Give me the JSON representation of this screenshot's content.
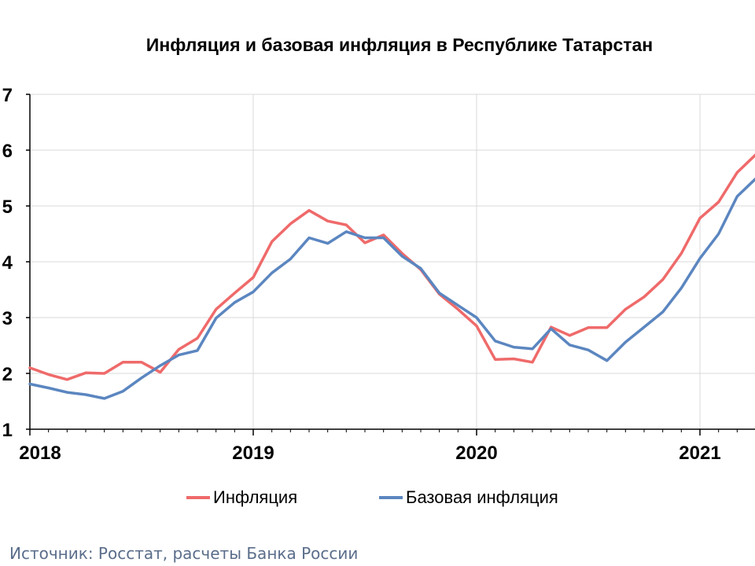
{
  "chart_data": {
    "type": "line",
    "title": "Инфляция и базовая инфляция в Республике Татарстан",
    "ylim": [
      1,
      7
    ],
    "yticks": [
      "1",
      "2",
      "3",
      "4",
      "5",
      "6",
      "7"
    ],
    "xticks": [
      "2018",
      "2019",
      "2020",
      "2021"
    ],
    "grid": "horizontal and vertical",
    "legend_position": "bottom",
    "series": [
      {
        "name": "Инфляция",
        "color": "#ef6a6a",
        "values": [
          2.1,
          1.98,
          1.89,
          2.01,
          2.0,
          2.2,
          2.2,
          2.02,
          2.43,
          2.63,
          3.15,
          3.44,
          3.72,
          4.36,
          4.68,
          4.92,
          4.73,
          4.66,
          4.34,
          4.48,
          4.15,
          3.86,
          3.42,
          3.15,
          2.85,
          2.25,
          2.26,
          2.2,
          2.83,
          2.68,
          2.82,
          2.82,
          3.15,
          3.37,
          3.68,
          4.15,
          4.78,
          5.07,
          5.6,
          5.92
        ]
      },
      {
        "name": "Базовая инфляция",
        "color": "#5b86c0",
        "values": [
          1.81,
          1.74,
          1.66,
          1.62,
          1.55,
          1.68,
          1.92,
          2.14,
          2.33,
          2.41,
          2.99,
          3.27,
          3.46,
          3.8,
          4.05,
          4.43,
          4.33,
          4.54,
          4.43,
          4.43,
          4.1,
          3.88,
          3.44,
          3.22,
          3.0,
          2.58,
          2.47,
          2.44,
          2.8,
          2.51,
          2.42,
          2.23,
          2.56,
          2.83,
          3.1,
          3.53,
          4.06,
          4.5,
          5.17,
          5.49
        ]
      }
    ]
  },
  "source_text": "Источник: Росстат, расчеты Банка России"
}
